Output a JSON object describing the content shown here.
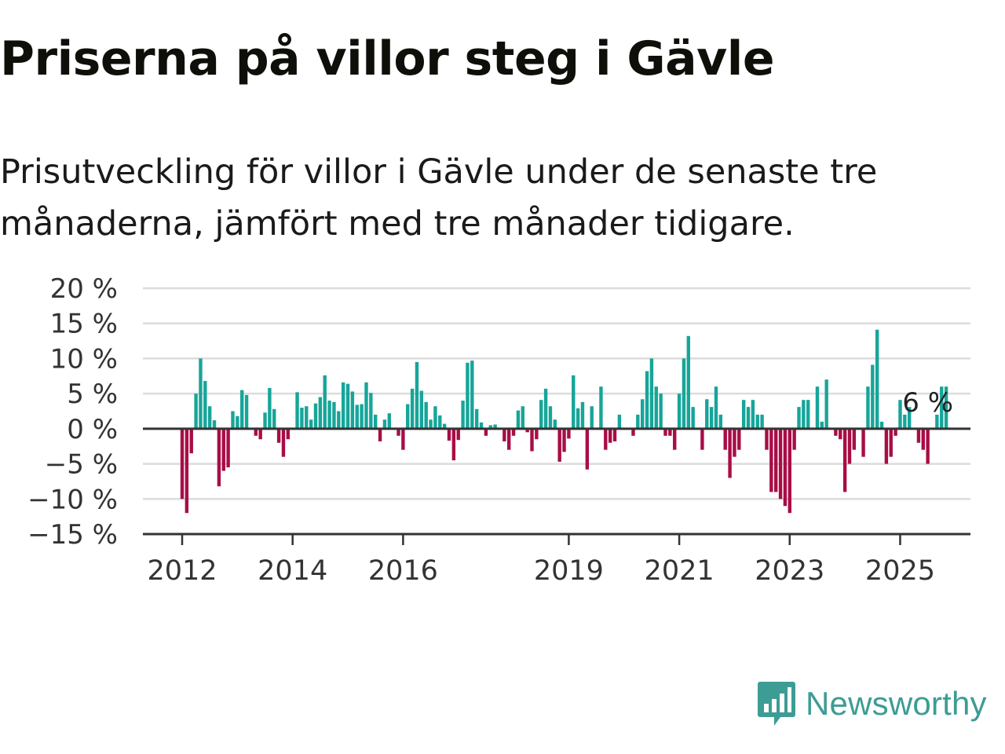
{
  "title": "Priserna på villor steg i Gävle",
  "subtitle": "Prisutveckling för villor i Gävle under de senaste tre månaderna, jämfört med tre månader tidigare.",
  "colors": {
    "positive": "#17a599",
    "negative": "#a80d46",
    "grid": "#dcdcdc",
    "axis": "#333333"
  },
  "logo": {
    "text": "Newsworthy",
    "icon": "newsworthy-bar-chart-logo-icon"
  },
  "chart_data": {
    "type": "bar",
    "title": "Priserna på villor steg i Gävle",
    "subtitle": "Prisutveckling för villor i Gävle under de senaste tre månaderna, jämfört med tre månader tidigare.",
    "unit": "%",
    "ylim": [
      -15,
      20
    ],
    "yticks": [
      20,
      15,
      10,
      5,
      0,
      -5,
      -10,
      -15
    ],
    "ytick_labels": [
      "20 %",
      "15 %",
      "10 %",
      "5 %",
      "0 %",
      "−5 %",
      "−10 %",
      "−15 %"
    ],
    "xticks": [
      {
        "label": "2012",
        "index": 0
      },
      {
        "label": "2014",
        "index": 24
      },
      {
        "label": "2016",
        "index": 48
      },
      {
        "label": "2019",
        "index": 84
      },
      {
        "label": "2021",
        "index": 108
      },
      {
        "label": "2023",
        "index": 132
      },
      {
        "label": "2025",
        "index": 156
      }
    ],
    "grid": true,
    "annotation": {
      "text": "6 %",
      "index": 163
    },
    "values": [
      -10,
      -12,
      -3.5,
      5,
      10,
      6.8,
      3.2,
      1.2,
      -8.2,
      -6,
      -5.5,
      2.5,
      1.8,
      5.5,
      4.8,
      0,
      -1,
      -1.5,
      2.3,
      5.8,
      2.8,
      -2,
      -4,
      -1.5,
      0,
      5.2,
      3,
      3.2,
      1.3,
      3.6,
      4.5,
      7.6,
      4,
      3.8,
      2.5,
      6.6,
      6.4,
      5.3,
      3.4,
      3.5,
      6.6,
      5.1,
      2,
      -1.8,
      1.3,
      2.2,
      0,
      -1,
      -3,
      3.5,
      5.7,
      9.5,
      5.4,
      3.8,
      1.3,
      3.2,
      1.9,
      0.7,
      -1.7,
      -4.5,
      -1.6,
      4,
      9.4,
      9.7,
      2.8,
      0.9,
      -1,
      0.5,
      0.6,
      0,
      -1.8,
      -3,
      -1,
      2.6,
      3.2,
      -0.5,
      -3.2,
      -1.5,
      4.1,
      5.7,
      3.2,
      1.3,
      -4.7,
      -3.3,
      -1.4,
      7.6,
      2.9,
      3.8,
      -5.8,
      3.2,
      0,
      6,
      -3,
      -2,
      -1.8,
      2,
      0,
      0,
      -1,
      2,
      4.2,
      8.2,
      10,
      6,
      5,
      -1,
      -1,
      -3,
      5,
      10,
      13.2,
      3.1,
      0,
      -3,
      4.2,
      3.1,
      6,
      2,
      -3,
      -7,
      -4,
      -3,
      4.1,
      3.1,
      4.1,
      2,
      2,
      -3,
      -9,
      -9,
      -10,
      -11,
      -12,
      -3,
      3.1,
      4.1,
      4.1,
      0,
      6,
      1,
      7,
      0,
      -1,
      -1.5,
      -9,
      -5,
      -3,
      0,
      -4,
      6,
      9.1,
      14.1,
      1,
      -5,
      -4,
      -1,
      4.1,
      2,
      3.1,
      0,
      -2,
      -3,
      -5,
      0,
      2,
      6,
      6
    ]
  }
}
